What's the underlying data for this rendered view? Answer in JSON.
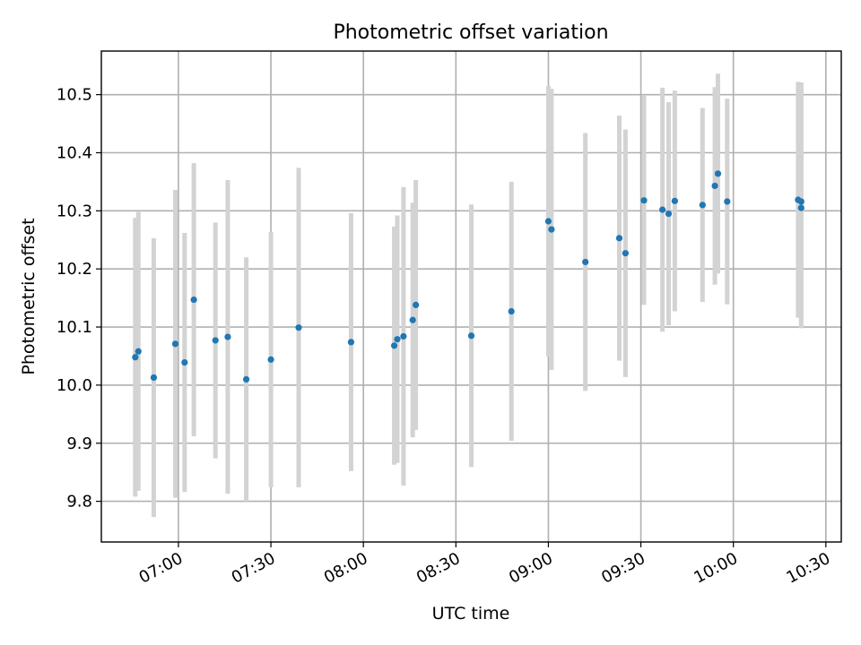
{
  "chart_data": {
    "type": "scatter",
    "title": "Photometric offset variation",
    "xlabel": "UTC time",
    "ylabel": "Photometric offset",
    "xlim": [
      "06:35",
      "10:35"
    ],
    "ylim": [
      9.73,
      10.575
    ],
    "grid": true,
    "x_ticks": [
      "07:00",
      "07:30",
      "08:00",
      "08:30",
      "09:00",
      "09:30",
      "10:00",
      "10:30"
    ],
    "y_ticks": [
      "9.8",
      "9.9",
      "10.0",
      "10.1",
      "10.2",
      "10.3",
      "10.4",
      "10.5"
    ],
    "colors": {
      "points": "#1f77b4",
      "error_bars": "#d3d3d3",
      "grid": "#b0b0b0"
    },
    "series": [
      {
        "points": [
          {
            "x": "06:46",
            "y": 10.048,
            "err": 0.24
          },
          {
            "x": "06:47",
            "y": 10.058,
            "err": 0.24
          },
          {
            "x": "06:52",
            "y": 10.013,
            "err": 0.24
          },
          {
            "x": "06:59",
            "y": 10.071,
            "err": 0.265
          },
          {
            "x": "07:02",
            "y": 10.039,
            "err": 0.223
          },
          {
            "x": "07:05",
            "y": 10.147,
            "err": 0.235
          },
          {
            "x": "07:12",
            "y": 10.077,
            "err": 0.203
          },
          {
            "x": "07:16",
            "y": 10.083,
            "err": 0.27
          },
          {
            "x": "07:22",
            "y": 10.01,
            "err": 0.21
          },
          {
            "x": "07:30",
            "y": 10.044,
            "err": 0.22
          },
          {
            "x": "07:39",
            "y": 10.099,
            "err": 0.275
          },
          {
            "x": "07:56",
            "y": 10.074,
            "err": 0.222
          },
          {
            "x": "08:10",
            "y": 10.068,
            "err": 0.205
          },
          {
            "x": "08:11",
            "y": 10.079,
            "err": 0.213
          },
          {
            "x": "08:13",
            "y": 10.084,
            "err": 0.257
          },
          {
            "x": "08:16",
            "y": 10.112,
            "err": 0.202
          },
          {
            "x": "08:17",
            "y": 10.138,
            "err": 0.215
          },
          {
            "x": "08:35",
            "y": 10.085,
            "err": 0.226
          },
          {
            "x": "08:48",
            "y": 10.127,
            "err": 0.223
          },
          {
            "x": "09:00",
            "y": 10.282,
            "err": 0.233
          },
          {
            "x": "09:01",
            "y": 10.268,
            "err": 0.242
          },
          {
            "x": "09:12",
            "y": 10.212,
            "err": 0.222
          },
          {
            "x": "09:23",
            "y": 10.253,
            "err": 0.211
          },
          {
            "x": "09:25",
            "y": 10.227,
            "err": 0.213
          },
          {
            "x": "09:31",
            "y": 10.318,
            "err": 0.18
          },
          {
            "x": "09:37",
            "y": 10.302,
            "err": 0.21
          },
          {
            "x": "09:39",
            "y": 10.295,
            "err": 0.192
          },
          {
            "x": "09:41",
            "y": 10.317,
            "err": 0.19
          },
          {
            "x": "09:50",
            "y": 10.31,
            "err": 0.167
          },
          {
            "x": "09:54",
            "y": 10.343,
            "err": 0.17
          },
          {
            "x": "09:55",
            "y": 10.364,
            "err": 0.172
          },
          {
            "x": "09:58",
            "y": 10.316,
            "err": 0.177
          },
          {
            "x": "10:21",
            "y": 10.319,
            "err": 0.203
          },
          {
            "x": "10:22",
            "y": 10.316,
            "err": 0.205
          },
          {
            "x": "10:22",
            "y": 10.305,
            "err": 0.207
          }
        ]
      }
    ]
  }
}
